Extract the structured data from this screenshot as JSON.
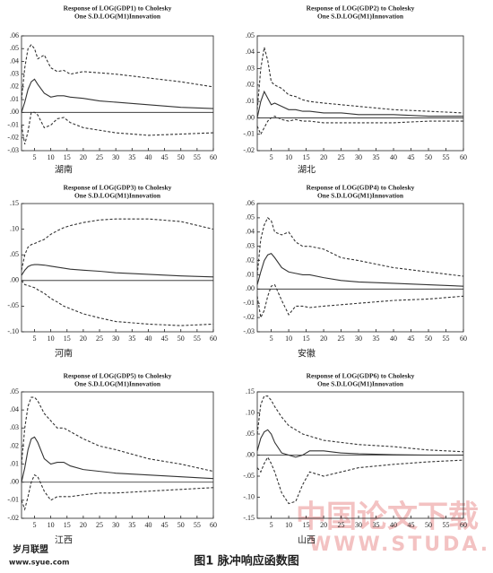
{
  "chart_data": [
    {
      "type": "line",
      "title": [
        "Response of LOG(GDP1) to Cholesky",
        "One S.D.LOG(M1)Innovation"
      ],
      "xlabel": "湖南",
      "x": [
        1,
        2,
        3,
        4,
        5,
        6,
        8,
        10,
        12,
        14,
        16,
        20,
        25,
        30,
        40,
        50,
        60
      ],
      "xlim": [
        1,
        60
      ],
      "xticks": [
        5,
        10,
        15,
        20,
        25,
        30,
        35,
        40,
        45,
        50,
        55,
        60
      ],
      "ylim": [
        -0.03,
        0.06
      ],
      "yticks": [
        {
          "value": 0.06,
          "label": ".06"
        },
        {
          "value": 0.05,
          "label": ".05"
        },
        {
          "value": 0.04,
          "label": ".04"
        },
        {
          "value": 0.03,
          "label": ".03"
        },
        {
          "value": 0.02,
          "label": ".02"
        },
        {
          "value": 0.01,
          "label": ".01"
        },
        {
          "value": 0,
          "label": ".00"
        },
        {
          "value": -0.01,
          "label": "-.01"
        },
        {
          "value": -0.02,
          "label": "-.02"
        },
        {
          "value": -0.03,
          "label": "-.03"
        }
      ],
      "series": [
        {
          "color": "#333333",
          "dash": false,
          "values": [
            0.0,
            0.008,
            0.018,
            0.024,
            0.026,
            0.022,
            0.015,
            0.012,
            0.013,
            0.013,
            0.012,
            0.011,
            0.009,
            0.008,
            0.006,
            0.004,
            0.003
          ]
        },
        {
          "color": "#333333",
          "dash": true,
          "values": [
            0.01,
            0.035,
            0.05,
            0.053,
            0.05,
            0.042,
            0.045,
            0.035,
            0.032,
            0.033,
            0.03,
            0.032,
            0.031,
            0.03,
            0.027,
            0.024,
            0.02
          ]
        },
        {
          "color": "#333333",
          "dash": true,
          "values": [
            -0.01,
            -0.025,
            -0.015,
            0.0,
            0.0,
            -0.002,
            -0.012,
            -0.01,
            -0.005,
            -0.004,
            -0.008,
            -0.012,
            -0.014,
            -0.016,
            -0.018,
            -0.017,
            -0.016
          ]
        }
      ]
    },
    {
      "type": "line",
      "title": [
        "Response of LOG(GDP2) to Cholesky",
        "One S.D.LOG(M1)Innovation"
      ],
      "xlabel": "湖北",
      "x": [
        1,
        2,
        3,
        4,
        5,
        6,
        8,
        10,
        12,
        14,
        16,
        20,
        25,
        30,
        40,
        50,
        60
      ],
      "xlim": [
        1,
        60
      ],
      "xticks": [
        5,
        10,
        15,
        20,
        25,
        30,
        35,
        40,
        45,
        50,
        55,
        60
      ],
      "ylim": [
        -0.02,
        0.05
      ],
      "yticks": [
        {
          "value": 0.05,
          "label": ".05"
        },
        {
          "value": 0.04,
          "label": ".04"
        },
        {
          "value": 0.03,
          "label": ".03"
        },
        {
          "value": 0.02,
          "label": ".02"
        },
        {
          "value": 0.01,
          "label": ".01"
        },
        {
          "value": 0,
          "label": ".00"
        },
        {
          "value": -0.01,
          "label": "-.01"
        },
        {
          "value": -0.02,
          "label": "-.02"
        }
      ],
      "series": [
        {
          "color": "#333333",
          "dash": false,
          "values": [
            0.0,
            0.01,
            0.016,
            0.012,
            0.008,
            0.009,
            0.007,
            0.005,
            0.005,
            0.004,
            0.004,
            0.003,
            0.003,
            0.002,
            0.002,
            0.001,
            0.001
          ]
        },
        {
          "color": "#333333",
          "dash": true,
          "values": [
            0.005,
            0.03,
            0.043,
            0.035,
            0.022,
            0.02,
            0.018,
            0.014,
            0.013,
            0.011,
            0.01,
            0.009,
            0.008,
            0.007,
            0.005,
            0.004,
            0.003
          ]
        },
        {
          "color": "#333333",
          "dash": true,
          "values": [
            -0.005,
            -0.01,
            -0.006,
            -0.002,
            0.0,
            0.001,
            -0.001,
            -0.002,
            -0.001,
            -0.002,
            -0.002,
            -0.003,
            -0.003,
            -0.003,
            -0.003,
            -0.002,
            -0.002
          ]
        }
      ]
    },
    {
      "type": "line",
      "title": [
        "Response of LOG(GDP3) to Cholesky",
        "One S.D.LOG(M1)Innovation"
      ],
      "xlabel": "河南",
      "x": [
        1,
        2,
        3,
        4,
        5,
        6,
        8,
        10,
        12,
        14,
        16,
        20,
        25,
        30,
        40,
        50,
        60
      ],
      "xlim": [
        1,
        60
      ],
      "xticks": [
        5,
        10,
        15,
        20,
        25,
        30,
        35,
        40,
        45,
        50,
        55,
        60
      ],
      "ylim": [
        -0.1,
        0.15
      ],
      "yticks": [
        {
          "value": 0.15,
          "label": ".15"
        },
        {
          "value": 0.1,
          "label": ".10"
        },
        {
          "value": 0.05,
          "label": ".05"
        },
        {
          "value": 0,
          "label": ".00"
        },
        {
          "value": -0.05,
          "label": "-.05"
        },
        {
          "value": -0.1,
          "label": "-.10"
        }
      ],
      "series": [
        {
          "color": "#333333",
          "dash": false,
          "values": [
            0.01,
            0.02,
            0.027,
            0.03,
            0.031,
            0.031,
            0.03,
            0.028,
            0.026,
            0.024,
            0.022,
            0.02,
            0.018,
            0.015,
            0.012,
            0.009,
            0.007
          ]
        },
        {
          "color": "#333333",
          "dash": true,
          "values": [
            0.02,
            0.05,
            0.065,
            0.07,
            0.072,
            0.075,
            0.08,
            0.09,
            0.097,
            0.103,
            0.107,
            0.113,
            0.118,
            0.12,
            0.12,
            0.115,
            0.1
          ]
        },
        {
          "color": "#333333",
          "dash": true,
          "values": [
            0.0,
            -0.008,
            -0.01,
            -0.012,
            -0.014,
            -0.018,
            -0.025,
            -0.035,
            -0.042,
            -0.05,
            -0.055,
            -0.065,
            -0.073,
            -0.08,
            -0.085,
            -0.088,
            -0.085
          ]
        }
      ]
    },
    {
      "type": "line",
      "title": [
        "Response of LOG(GDP4) to Cholesky",
        "One S.D.LOG(M1)Innovation"
      ],
      "xlabel": "安徽",
      "x": [
        1,
        2,
        3,
        4,
        5,
        6,
        8,
        10,
        12,
        14,
        16,
        20,
        25,
        30,
        40,
        50,
        60
      ],
      "xlim": [
        1,
        60
      ],
      "xticks": [
        5,
        10,
        15,
        20,
        25,
        30,
        35,
        40,
        45,
        50,
        55,
        60
      ],
      "ylim": [
        -0.03,
        0.06
      ],
      "yticks": [
        {
          "value": 0.06,
          "label": ".06"
        },
        {
          "value": 0.05,
          "label": ".05"
        },
        {
          "value": 0.04,
          "label": ".04"
        },
        {
          "value": 0.03,
          "label": ".03"
        },
        {
          "value": 0.02,
          "label": ".02"
        },
        {
          "value": 0.01,
          "label": ".01"
        },
        {
          "value": 0,
          "label": ".00"
        },
        {
          "value": -0.01,
          "label": "-.01"
        },
        {
          "value": -0.02,
          "label": "-.02"
        },
        {
          "value": -0.03,
          "label": "-.03"
        }
      ],
      "series": [
        {
          "color": "#333333",
          "dash": false,
          "values": [
            0.003,
            0.012,
            0.02,
            0.024,
            0.025,
            0.022,
            0.015,
            0.012,
            0.011,
            0.01,
            0.01,
            0.008,
            0.006,
            0.005,
            0.004,
            0.003,
            0.002
          ]
        },
        {
          "color": "#333333",
          "dash": true,
          "values": [
            0.01,
            0.035,
            0.045,
            0.05,
            0.048,
            0.04,
            0.038,
            0.04,
            0.033,
            0.03,
            0.03,
            0.028,
            0.022,
            0.02,
            0.015,
            0.012,
            0.009
          ]
        },
        {
          "color": "#333333",
          "dash": true,
          "values": [
            -0.005,
            -0.02,
            -0.015,
            -0.005,
            0.002,
            0.003,
            -0.008,
            -0.018,
            -0.012,
            -0.012,
            -0.013,
            -0.012,
            -0.011,
            -0.01,
            -0.008,
            -0.007,
            -0.005
          ]
        }
      ]
    },
    {
      "type": "line",
      "title": [
        "Response of LOG(GDP5) to Cholesky",
        "One S.D.LOG(M1)Innovation"
      ],
      "xlabel": "江西",
      "x": [
        1,
        2,
        3,
        4,
        5,
        6,
        8,
        10,
        12,
        14,
        16,
        20,
        25,
        30,
        40,
        50,
        60
      ],
      "xlim": [
        1,
        60
      ],
      "xticks": [
        5,
        10,
        15,
        20,
        25,
        30,
        35,
        40,
        45,
        50,
        55,
        60
      ],
      "ylim": [
        -0.02,
        0.05
      ],
      "yticks": [
        {
          "value": 0.05,
          "label": ".05"
        },
        {
          "value": 0.04,
          "label": ".04"
        },
        {
          "value": 0.03,
          "label": ".03"
        },
        {
          "value": 0.02,
          "label": ".02"
        },
        {
          "value": 0.01,
          "label": ".01"
        },
        {
          "value": 0,
          "label": ".00"
        },
        {
          "value": -0.01,
          "label": "-.01"
        },
        {
          "value": -0.02,
          "label": "-.02"
        }
      ],
      "series": [
        {
          "color": "#333333",
          "dash": false,
          "values": [
            0.0,
            0.008,
            0.018,
            0.024,
            0.025,
            0.022,
            0.013,
            0.01,
            0.011,
            0.011,
            0.009,
            0.007,
            0.006,
            0.005,
            0.004,
            0.003,
            0.002
          ]
        },
        {
          "color": "#333333",
          "dash": true,
          "values": [
            0.01,
            0.03,
            0.042,
            0.047,
            0.047,
            0.045,
            0.038,
            0.034,
            0.03,
            0.03,
            0.028,
            0.024,
            0.02,
            0.018,
            0.013,
            0.01,
            0.006
          ]
        },
        {
          "color": "#333333",
          "dash": true,
          "values": [
            -0.01,
            -0.015,
            -0.008,
            0.0,
            0.004,
            0.003,
            -0.005,
            -0.01,
            -0.008,
            -0.008,
            -0.008,
            -0.007,
            -0.006,
            -0.006,
            -0.005,
            -0.004,
            -0.003
          ]
        }
      ]
    },
    {
      "type": "line",
      "title": [
        "Response of LOG(GDP6) to Cholesky",
        "One S.D.LOG(M1)Innovation"
      ],
      "xlabel": "山西",
      "x": [
        1,
        2,
        3,
        4,
        5,
        6,
        8,
        10,
        12,
        14,
        16,
        20,
        25,
        30,
        40,
        50,
        60
      ],
      "xlim": [
        1,
        60
      ],
      "xticks": [
        5,
        10,
        15,
        20,
        25,
        30,
        35,
        40,
        45,
        50,
        55,
        60
      ],
      "ylim": [
        -0.15,
        0.15
      ],
      "yticks": [
        {
          "value": 0.15,
          "label": ".15"
        },
        {
          "value": 0.1,
          "label": ".10"
        },
        {
          "value": 0.05,
          "label": ".05"
        },
        {
          "value": 0,
          "label": ".00"
        },
        {
          "value": -0.05,
          "label": "-.05"
        },
        {
          "value": -0.1,
          "label": "-.10"
        },
        {
          "value": -0.15,
          "label": "-.15"
        }
      ],
      "series": [
        {
          "color": "#333333",
          "dash": false,
          "values": [
            0.01,
            0.04,
            0.055,
            0.06,
            0.05,
            0.03,
            0.005,
            0.0,
            -0.005,
            0.0,
            0.01,
            0.01,
            0.005,
            0.003,
            0.001,
            0.0,
            0.0
          ]
        },
        {
          "color": "#333333",
          "dash": true,
          "values": [
            0.05,
            0.12,
            0.14,
            0.14,
            0.13,
            0.115,
            0.09,
            0.07,
            0.06,
            0.05,
            0.045,
            0.035,
            0.03,
            0.025,
            0.02,
            0.012,
            0.008
          ]
        },
        {
          "color": "#333333",
          "dash": true,
          "values": [
            -0.03,
            -0.04,
            -0.02,
            -0.005,
            -0.02,
            -0.04,
            -0.09,
            -0.115,
            -0.11,
            -0.07,
            -0.04,
            -0.05,
            -0.04,
            -0.03,
            -0.022,
            -0.016,
            -0.012
          ]
        }
      ]
    }
  ],
  "caption": "图1  脉冲响应函数图",
  "watermark": [
    "中国论文下载",
    "WWW.STUDA.",
    "岁月联盟",
    "www.syue.com"
  ]
}
